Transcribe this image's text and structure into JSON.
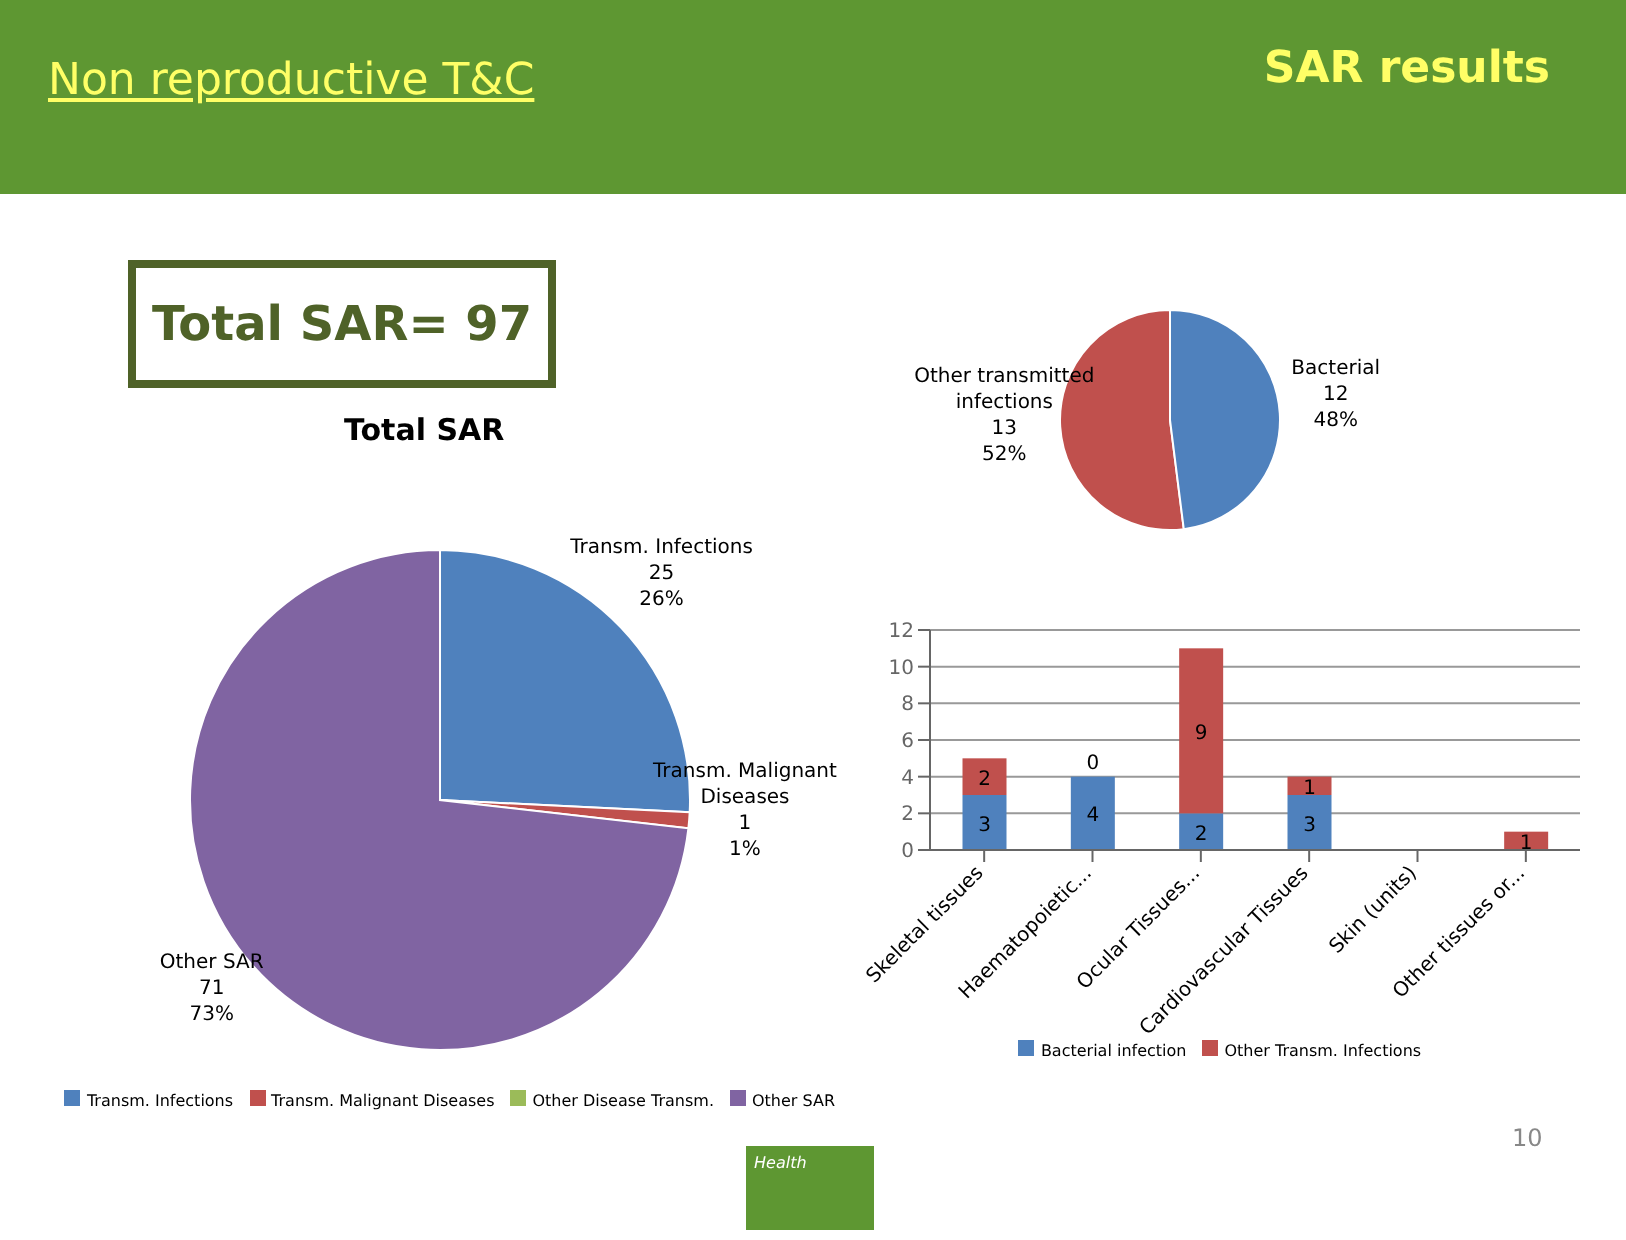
{
  "chart_data": [
    {
      "type": "pie",
      "title": "Total SAR",
      "categories": [
        "Transm. Infections",
        "Transm. Malignant Diseases",
        "Other Disease Transm.",
        "Other SAR"
      ],
      "values": [
        25,
        1,
        0,
        71
      ],
      "colors": [
        "#4f81bd",
        "#c0504d",
        "#9bbb59",
        "#8064a2"
      ],
      "data_labels": true,
      "value_labels": [
        "25\n26%",
        "1\n1%",
        null,
        "71\n73%"
      ],
      "legend": "bottom",
      "annotations": [
        "Non reproductive T&C",
        "SAR results",
        "Total SAR= 97",
        "Health",
        "10"
      ]
    },
    {
      "type": "pie",
      "categories": [
        "Other transmitted infections",
        "Bacterial"
      ],
      "values": [
        13,
        12
      ],
      "colors": [
        "#c0504d",
        "#4f81bd"
      ],
      "data_labels": true,
      "value_labels": [
        "13\n52%",
        "12\n48%"
      ],
      "legend": false
    },
    {
      "type": "bar",
      "stacked": true,
      "categories": [
        "Skeletal tissues",
        "Haematopoietic...",
        "Ocular Tissues...",
        "Cardiovascular Tissues",
        "Skin (units)",
        "Other tissues or..."
      ],
      "series": [
        {
          "name": "Bacterial infection",
          "color": "#4f81bd",
          "values": [
            3,
            4,
            2,
            3,
            0,
            0
          ],
          "value_labels": [
            "3",
            "4",
            "2",
            "3",
            null,
            null
          ]
        },
        {
          "name": "Other Transm. Infections",
          "color": "#c0504d",
          "values": [
            2,
            0,
            9,
            1,
            0,
            1
          ],
          "value_labels": [
            "2",
            "0",
            "9",
            "1",
            null,
            "1"
          ]
        }
      ],
      "ylim": [
        0,
        12
      ],
      "yticks": [
        0,
        2,
        4,
        6,
        8,
        10,
        12
      ],
      "grid": "y",
      "legend": "bottom"
    }
  ]
}
